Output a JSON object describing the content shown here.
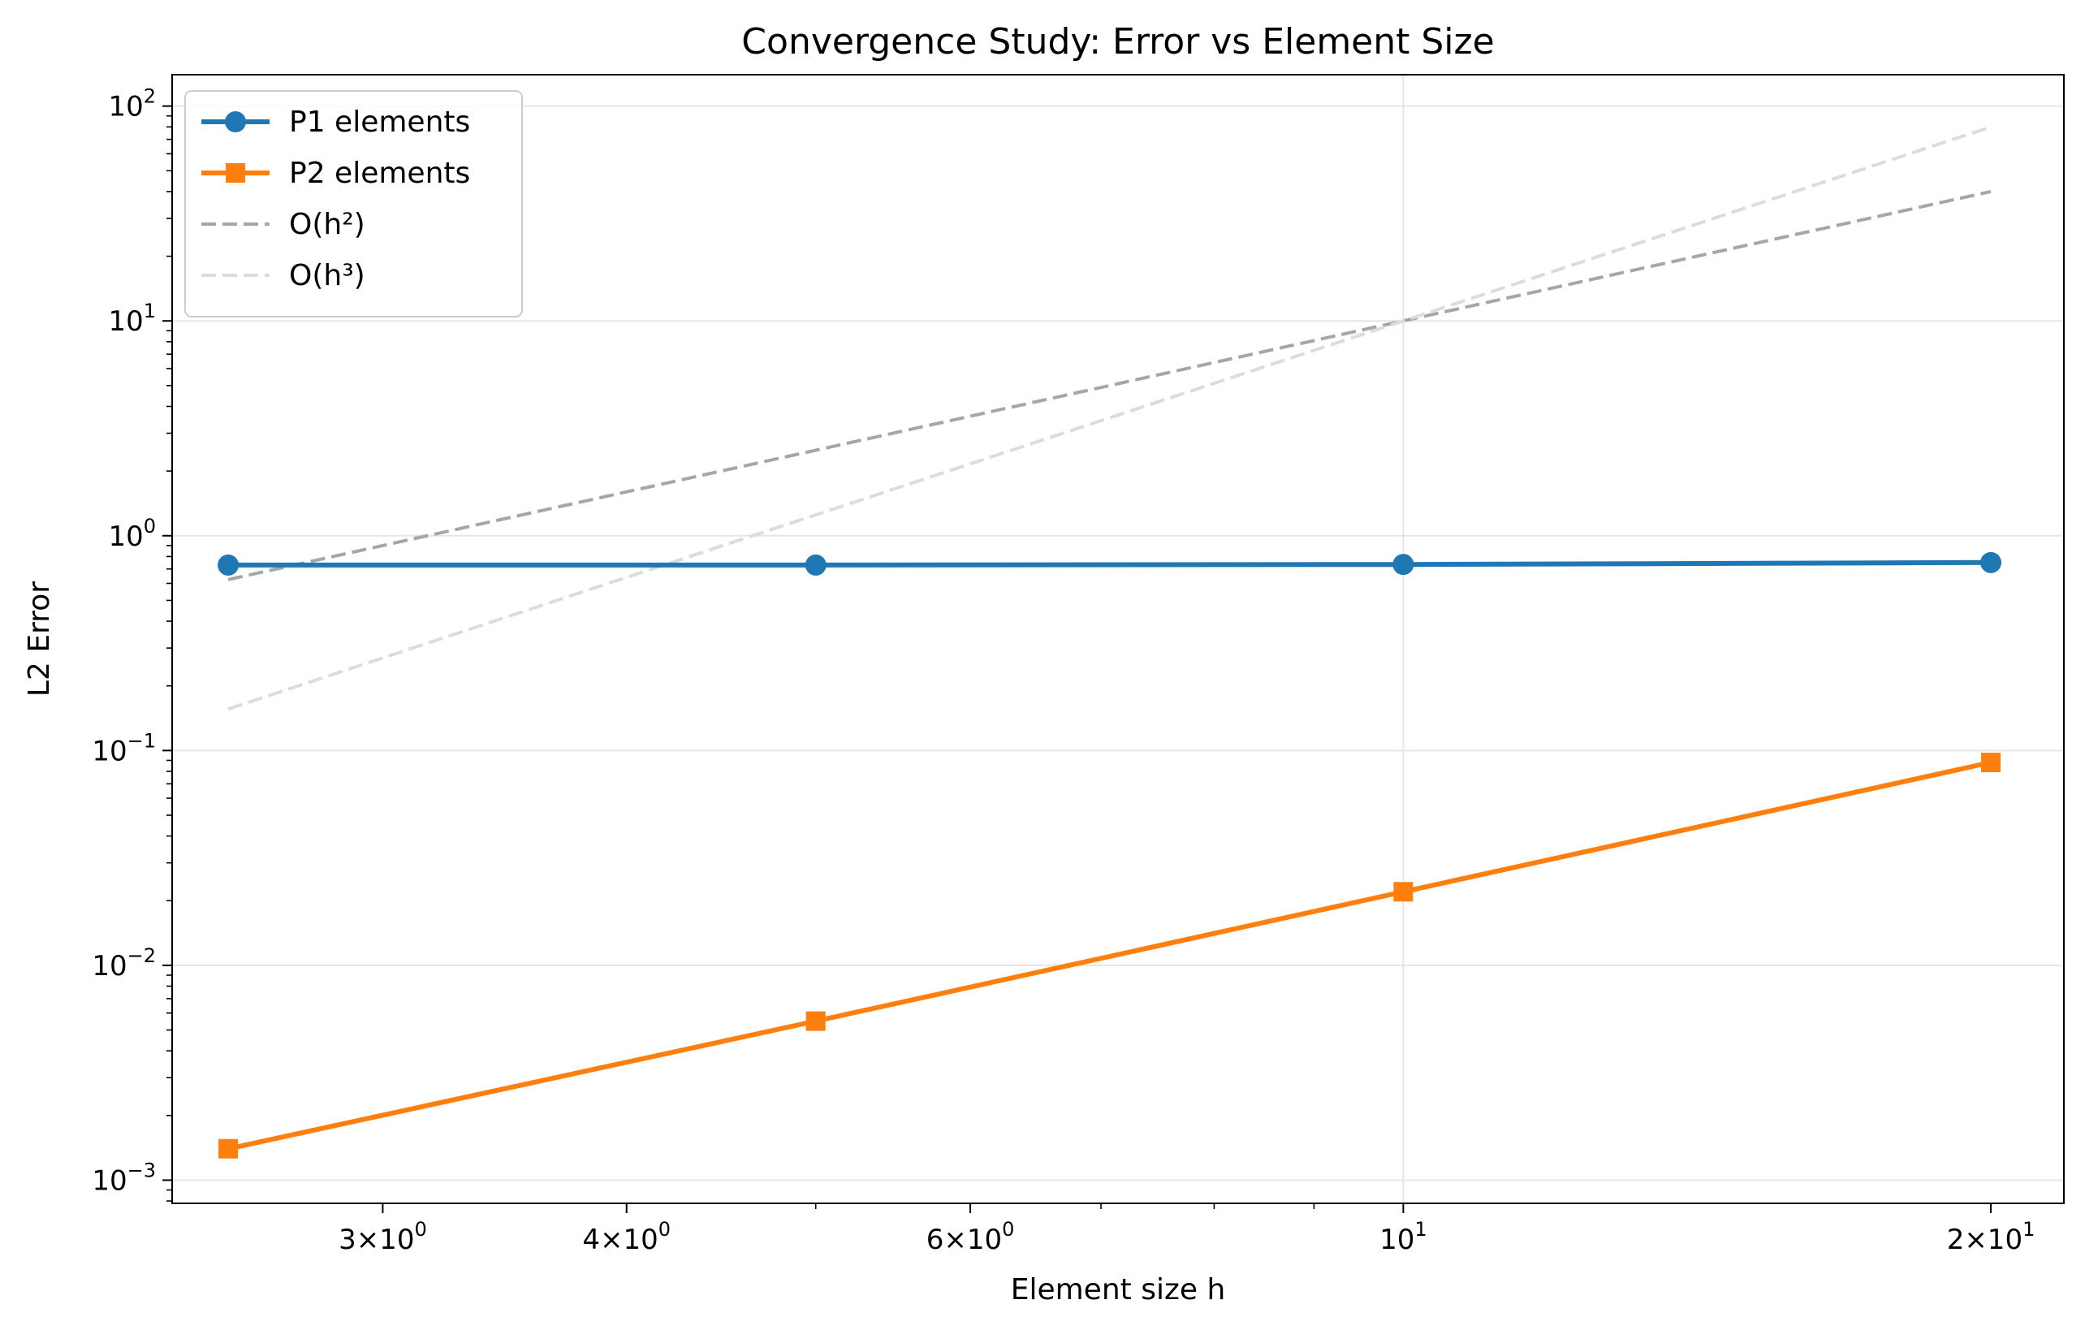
{
  "chart_data": {
    "type": "line",
    "title": "Convergence Study: Error vs Element Size",
    "xlabel": "Element size h",
    "ylabel": "L2 Error",
    "x_scale": "log",
    "y_scale": "log",
    "xlim": [
      2.34,
      21.8
    ],
    "ylim": [
      0.00078,
      140
    ],
    "grid": true,
    "legend_position": "upper-left",
    "x_ticks": [
      {
        "value": 3,
        "mant": "3",
        "exp": "0"
      },
      {
        "value": 4,
        "mant": "4",
        "exp": "0"
      },
      {
        "value": 6,
        "mant": "6",
        "exp": "0"
      },
      {
        "value": 10,
        "mant": "",
        "exp": "1"
      },
      {
        "value": 20,
        "mant": "2",
        "exp": "1"
      }
    ],
    "y_ticks": [
      {
        "value": 0.001,
        "exp": "−3"
      },
      {
        "value": 0.01,
        "exp": "−2"
      },
      {
        "value": 0.1,
        "exp": "−1"
      },
      {
        "value": 1,
        "exp": "0"
      },
      {
        "value": 10,
        "exp": "1"
      },
      {
        "value": 100,
        "exp": "2"
      }
    ],
    "series": [
      {
        "name": "P1 elements",
        "color": "#1f77b4",
        "style": "solid",
        "marker": "circle",
        "x": [
          2.5,
          5,
          10,
          20
        ],
        "y": [
          0.73,
          0.73,
          0.735,
          0.75
        ]
      },
      {
        "name": "P2 elements",
        "color": "#ff7f0e",
        "style": "solid",
        "marker": "square",
        "x": [
          2.5,
          5,
          10,
          20
        ],
        "y": [
          0.0014,
          0.0055,
          0.022,
          0.088
        ]
      },
      {
        "name": "O(h²)",
        "color": "#a6a6a6",
        "style": "dashed",
        "marker": "none",
        "x": [
          2.5,
          5,
          10,
          20
        ],
        "y": [
          0.625,
          2.5,
          10,
          40
        ]
      },
      {
        "name": "O(h³)",
        "color": "#dcdcdc",
        "style": "dashed",
        "marker": "none",
        "x": [
          2.5,
          5,
          10,
          20
        ],
        "y": [
          0.156,
          1.25,
          10,
          80
        ]
      }
    ]
  }
}
